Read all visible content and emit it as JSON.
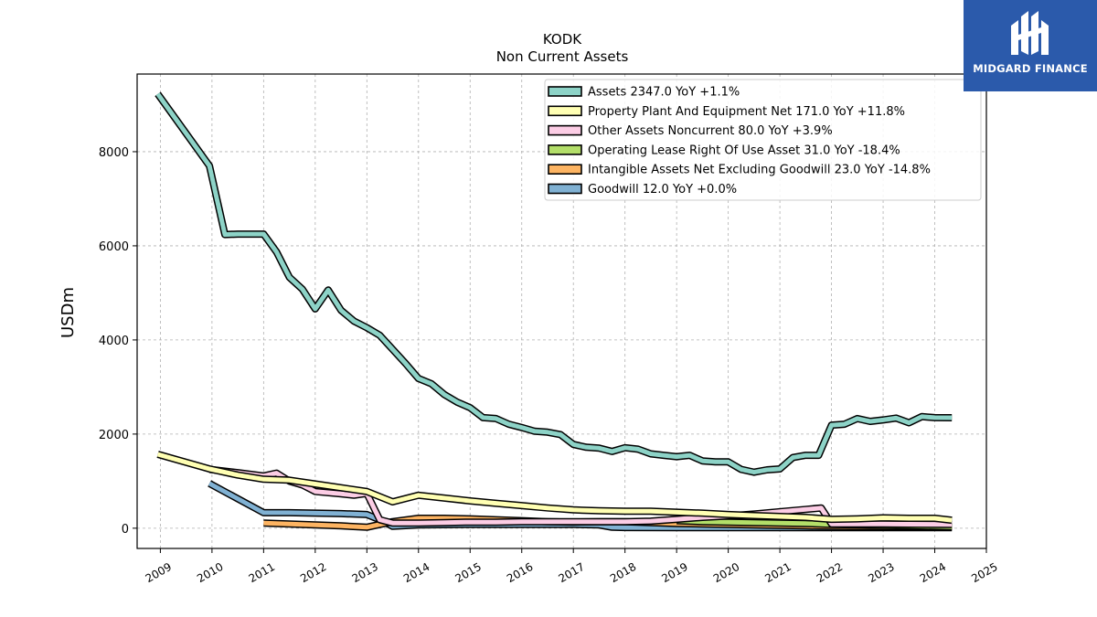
{
  "chart_data": {
    "type": "line",
    "title": "KODK",
    "subtitle": "Non Current  Assets",
    "ylabel": "USDm",
    "xlim": [
      2008.55,
      2025.0
    ],
    "ylim": [
      -430,
      9650
    ],
    "yticks": [
      0,
      2000,
      4000,
      6000,
      8000
    ],
    "xticks": [
      "2009",
      "2010",
      "2011",
      "2012",
      "2013",
      "2014",
      "2015",
      "2016",
      "2017",
      "2018",
      "2019",
      "2020",
      "2021",
      "2022",
      "2023",
      "2024",
      "2025"
    ],
    "grid": true,
    "legend_position": "top-right",
    "series": [
      {
        "name": "Assets  2347.0 YoY +1.1%",
        "color": "#8dd3c7",
        "x": [
          2008.95,
          2009.95,
          2010.25,
          2010.5,
          2011.0,
          2011.25,
          2011.5,
          2011.75,
          2012.0,
          2012.25,
          2012.5,
          2012.75,
          2013.0,
          2013.25,
          2013.5,
          2013.75,
          2014.0,
          2014.25,
          2014.5,
          2014.75,
          2015.0,
          2015.25,
          2015.5,
          2015.75,
          2016.0,
          2016.25,
          2016.5,
          2016.75,
          2017.0,
          2017.25,
          2017.5,
          2017.75,
          2018.0,
          2018.25,
          2018.5,
          2018.75,
          2019.0,
          2019.25,
          2019.5,
          2019.75,
          2020.0,
          2020.25,
          2020.5,
          2020.75,
          2021.0,
          2021.25,
          2021.5,
          2021.75,
          2022.0,
          2022.25,
          2022.5,
          2022.75,
          2023.0,
          2023.25,
          2023.5,
          2023.75,
          2024.0,
          2024.33
        ],
        "y": [
          9226,
          7700,
          6240,
          6250,
          6250,
          5870,
          5330,
          5080,
          4660,
          5060,
          4630,
          4400,
          4260,
          4100,
          3800,
          3500,
          3180,
          3070,
          2840,
          2680,
          2560,
          2350,
          2330,
          2210,
          2140,
          2060,
          2040,
          1990,
          1780,
          1720,
          1700,
          1630,
          1710,
          1680,
          1580,
          1550,
          1520,
          1550,
          1430,
          1410,
          1410,
          1250,
          1190,
          1240,
          1260,
          1500,
          1550,
          1550,
          2190,
          2210,
          2330,
          2270,
          2300,
          2340,
          2240,
          2370,
          2350,
          2347
        ]
      },
      {
        "name": "Property Plant And Equipment Net  171.0 YoY +11.8%",
        "color": "#ffffb3",
        "x": [
          2008.95,
          2009.95,
          2010.5,
          2011.0,
          2011.5,
          2012.0,
          2012.5,
          2013.0,
          2013.5,
          2014.0,
          2014.5,
          2015.0,
          2015.5,
          2016.0,
          2016.5,
          2017.0,
          2017.5,
          2018.0,
          2018.5,
          2019.0,
          2019.5,
          2020.0,
          2020.5,
          2021.0,
          2021.5,
          2022.0,
          2022.5,
          2023.0,
          2023.5,
          2024.0,
          2024.33
        ],
        "y": [
          1570,
          1260,
          1130,
          1040,
          1020,
          940,
          860,
          780,
          560,
          700,
          640,
          580,
          530,
          480,
          430,
          390,
          370,
          360,
          360,
          340,
          320,
          290,
          270,
          250,
          230,
          190,
          200,
          220,
          210,
          210,
          171
        ]
      },
      {
        "name": "Other Assets Noncurrent  80.0 YoY +3.9%",
        "color": "#fccde5",
        "x": [
          2009.95,
          2010.5,
          2011.0,
          2011.25,
          2011.5,
          2011.75,
          2012.0,
          2012.5,
          2012.75,
          2013.0,
          2013.25,
          2013.5,
          2014.0,
          2014.5,
          2015.0,
          2015.5,
          2016.0,
          2016.5,
          2017.0,
          2017.5,
          2018.0,
          2018.5,
          2019.0,
          2019.5,
          2020.0,
          2020.5,
          2021.0,
          2021.5,
          2021.8,
          2022.0,
          2022.5,
          2023.0,
          2023.5,
          2024.0,
          2024.33
        ],
        "y": [
          1250,
          1180,
          1110,
          1170,
          1000,
          920,
          780,
          730,
          700,
          740,
          180,
          110,
          110,
          120,
          130,
          130,
          140,
          140,
          140,
          140,
          140,
          150,
          190,
          230,
          260,
          300,
          350,
          400,
          430,
          90,
          90,
          90,
          85,
          82,
          80
        ]
      },
      {
        "name": "Operating Lease Right Of Use Asset  31.0 YoY -18.4%",
        "color": "#b3de69",
        "x": [
          2019.0,
          2019.5,
          2020.0,
          2020.5,
          2021.0,
          2021.5,
          2022.0,
          2022.5,
          2023.0,
          2023.5,
          2024.0,
          2024.33
        ],
        "y": [
          160,
          140,
          130,
          120,
          110,
          100,
          80,
          70,
          60,
          50,
          40,
          31
        ]
      },
      {
        "name": "Intangible Assets Net Excluding Goodwill  23.0 YoY -14.8%",
        "color": "#fdb462",
        "x": [
          2011.0,
          2011.5,
          2012.0,
          2012.5,
          2013.0,
          2013.5,
          2014.0,
          2014.5,
          2015.0,
          2015.5,
          2016.0,
          2016.5,
          2017.0,
          2017.5,
          2018.0,
          2018.5,
          2019.0,
          2019.5,
          2020.0,
          2020.5,
          2021.0,
          2021.5,
          2022.0,
          2022.5,
          2023.0,
          2023.5,
          2024.0,
          2024.33
        ],
        "y": [
          110,
          90,
          70,
          50,
          20,
          140,
          210,
          210,
          200,
          180,
          160,
          140,
          130,
          140,
          140,
          120,
          100,
          90,
          80,
          70,
          60,
          50,
          40,
          35,
          30,
          27,
          25,
          23
        ]
      },
      {
        "name": "Goodwill  12.0 YoY +0.0%",
        "color": "#80b1d3",
        "x": [
          2009.95,
          2011.0,
          2011.5,
          2012.0,
          2012.5,
          2013.0,
          2013.25,
          2013.5,
          2014.0,
          2015.0,
          2016.0,
          2017.0,
          2017.5,
          2017.75,
          2018.0,
          2019.0,
          2020.0,
          2021.0,
          2022.0,
          2023.0,
          2024.0,
          2024.33
        ],
        "y": [
          950,
          330,
          330,
          320,
          310,
          290,
          180,
          40,
          70,
          80,
          80,
          80,
          70,
          20,
          15,
          12,
          12,
          12,
          12,
          12,
          12,
          12
        ]
      }
    ]
  },
  "logo": {
    "text": "MIDGARD FINANCE"
  }
}
